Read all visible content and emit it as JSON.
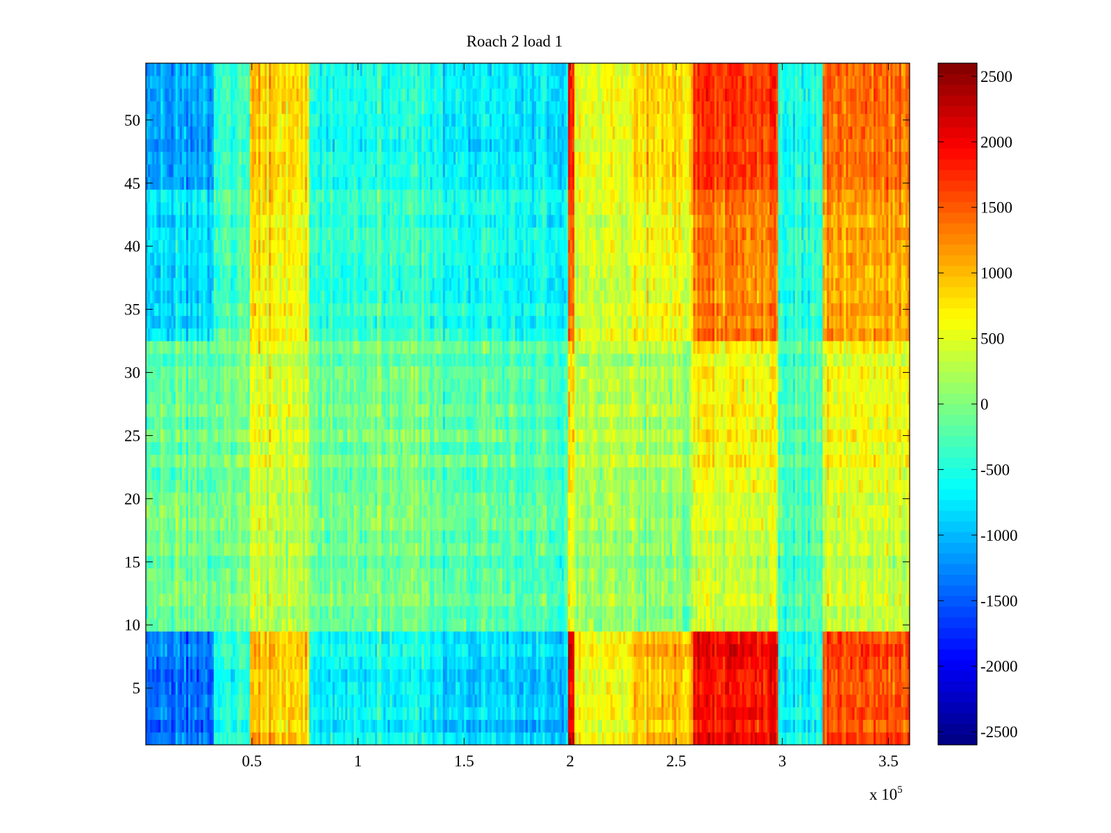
{
  "chart_data": {
    "type": "heatmap",
    "title": "Roach 2 load 1",
    "xlabel": "",
    "ylabel": "",
    "x_multiplier": "x 10",
    "x_multiplier_exponent": "5",
    "xlim": [
      0,
      3.6
    ],
    "ylim": [
      0.5,
      54.5
    ],
    "grid": false,
    "x_ticks": [
      0.5,
      1,
      1.5,
      2,
      2.5,
      3,
      3.5
    ],
    "x_tick_labels": [
      "0.5",
      "1",
      "1.5",
      "2",
      "2.5",
      "3",
      "3.5"
    ],
    "y_ticks": [
      5,
      10,
      15,
      20,
      25,
      30,
      35,
      40,
      45,
      50
    ],
    "y_tick_labels": [
      "5",
      "10",
      "15",
      "20",
      "25",
      "30",
      "35",
      "40",
      "45",
      "50"
    ],
    "colorbar": {
      "colormap": "jet",
      "clim": [
        -2600,
        2600
      ],
      "ticks": [
        -2500,
        -2000,
        -1500,
        -1000,
        -500,
        0,
        500,
        1000,
        1500,
        2000,
        2500
      ],
      "tick_labels": [
        "-2500",
        "-2000",
        "-1500",
        "-1000",
        "-500",
        "0",
        "500",
        "1000",
        "1500",
        "2000",
        "2500"
      ],
      "placement": "right"
    },
    "column_bands": [
      {
        "x_start": 0.0,
        "x_end": 0.32,
        "outer_rows_value": -1400,
        "middle_rows_value": 250
      },
      {
        "x_start": 0.32,
        "x_end": 0.49,
        "outer_rows_value": -500,
        "middle_rows_value": 100
      },
      {
        "x_start": 0.49,
        "x_end": 0.77,
        "outer_rows_value": 900,
        "middle_rows_value": 300
      },
      {
        "x_start": 0.77,
        "x_end": 1.4,
        "outer_rows_value": -700,
        "middle_rows_value": 100
      },
      {
        "x_start": 1.4,
        "x_end": 1.99,
        "outer_rows_value": -900,
        "middle_rows_value": 0
      },
      {
        "x_start": 1.99,
        "x_end": 2.02,
        "outer_rows_value": 2000,
        "middle_rows_value": 400
      },
      {
        "x_start": 2.02,
        "x_end": 2.3,
        "outer_rows_value": 500,
        "middle_rows_value": 100
      },
      {
        "x_start": 2.3,
        "x_end": 2.58,
        "outer_rows_value": 900,
        "middle_rows_value": -100
      },
      {
        "x_start": 2.58,
        "x_end": 2.98,
        "outer_rows_value": 1900,
        "middle_rows_value": 200
      },
      {
        "x_start": 2.98,
        "x_end": 3.19,
        "outer_rows_value": -700,
        "middle_rows_value": -200
      },
      {
        "x_start": 3.19,
        "x_end": 3.6,
        "outer_rows_value": 1500,
        "middle_rows_value": 200
      }
    ],
    "row_band_profile": [
      {
        "y_start": 0.5,
        "y_end": 9.5,
        "weight": 1.0
      },
      {
        "y_start": 9.5,
        "y_end": 20.5,
        "weight": 0.15
      },
      {
        "y_start": 20.5,
        "y_end": 32.5,
        "weight": 0.25
      },
      {
        "y_start": 32.5,
        "y_end": 44.5,
        "weight": 0.65
      },
      {
        "y_start": 44.5,
        "y_end": 54.5,
        "weight": 0.85
      }
    ]
  }
}
